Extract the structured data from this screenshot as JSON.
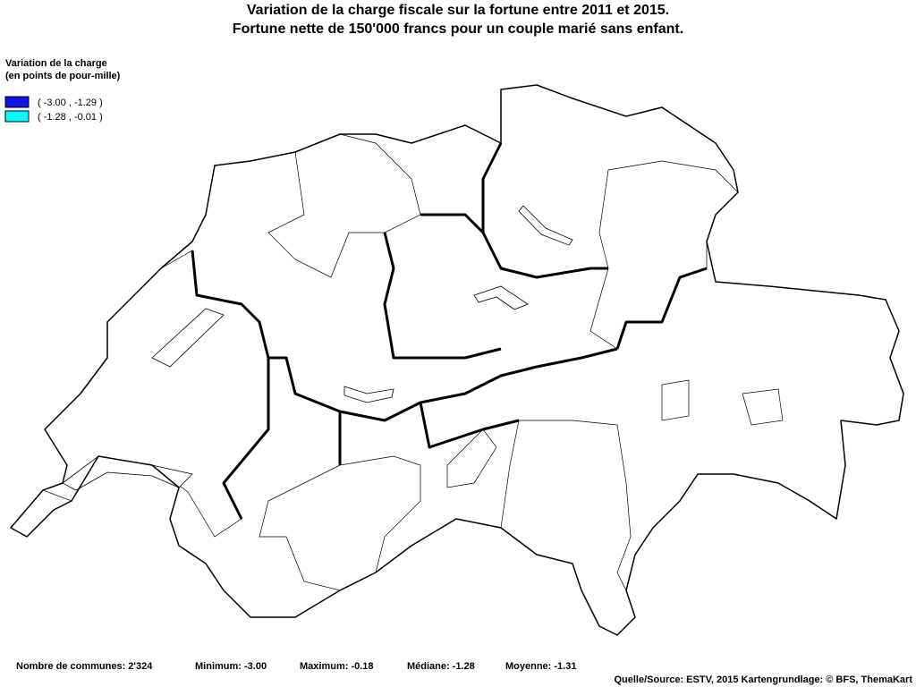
{
  "title": [
    "Variation de la charge fiscale sur la fortune entre 2011 et 2015.",
    "Fortune nette de 150'000 francs pour un couple marié sans enfant."
  ],
  "legend": {
    "title": [
      "Variation de la charge",
      "(en points de pour-mille)"
    ],
    "items": [
      {
        "label": "( -3.00 , -1.29 )",
        "color": "#1414e6"
      },
      {
        "label": "( -1.28 , -0.01 )",
        "color": "#00ffff"
      }
    ]
  },
  "footer": {
    "stats": [
      "Nombre de communes: 2'324",
      "Minimum: -3.00",
      "Maximum: -0.18",
      "Médiane: -1.28",
      "Moyenne: -1.31"
    ],
    "source": "Quelle/Source: ESTV, 2015 Kartengrundlage: © BFS, ThemaKart"
  }
}
